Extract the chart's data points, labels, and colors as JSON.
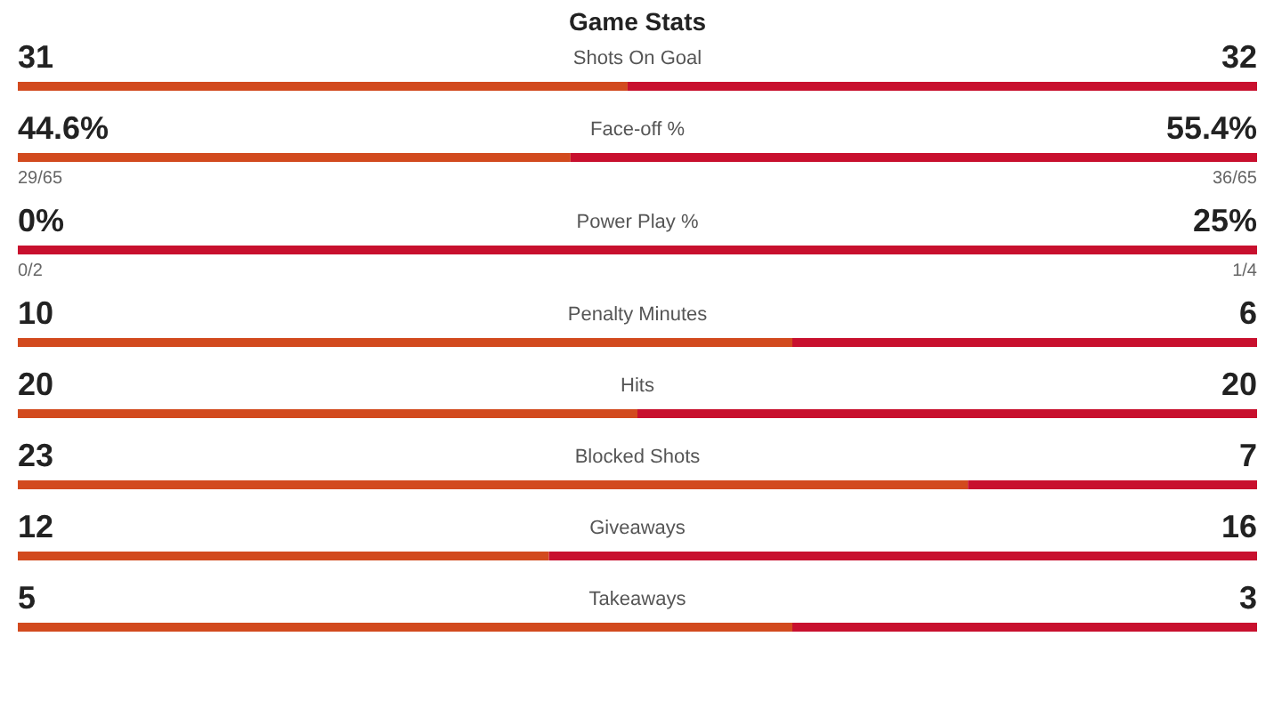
{
  "chart_data": [
    {
      "type": "bar",
      "orientation": "horizontal",
      "stacked": true,
      "title": "Game Stats",
      "categories": [
        "Shots On Goal"
      ],
      "series": [
        {
          "color": "#d24a1e",
          "values": [
            31
          ],
          "value_labels": [
            "31"
          ]
        },
        {
          "color": "#c8102e",
          "values": [
            32
          ],
          "value_labels": [
            "32"
          ]
        }
      ]
    },
    {
      "type": "bar",
      "orientation": "horizontal",
      "stacked": true,
      "categories": [
        "Face-off %"
      ],
      "annotations": [
        "29/65",
        "36/65"
      ],
      "series": [
        {
          "color": "#d24a1e",
          "values": [
            44.6
          ],
          "value_labels": [
            "44.6%"
          ]
        },
        {
          "color": "#c8102e",
          "values": [
            55.4
          ],
          "value_labels": [
            "55.4%"
          ]
        }
      ]
    },
    {
      "type": "bar",
      "orientation": "horizontal",
      "stacked": true,
      "categories": [
        "Power Play %"
      ],
      "annotations": [
        "0/2",
        "1/4"
      ],
      "series": [
        {
          "color": "#d24a1e",
          "values": [
            0
          ],
          "value_labels": [
            "0%"
          ]
        },
        {
          "color": "#c8102e",
          "values": [
            25
          ],
          "value_labels": [
            "25%"
          ]
        }
      ]
    },
    {
      "type": "bar",
      "orientation": "horizontal",
      "stacked": true,
      "categories": [
        "Penalty Minutes"
      ],
      "series": [
        {
          "color": "#d24a1e",
          "values": [
            10
          ],
          "value_labels": [
            "10"
          ]
        },
        {
          "color": "#c8102e",
          "values": [
            6
          ],
          "value_labels": [
            "6"
          ]
        }
      ]
    },
    {
      "type": "bar",
      "orientation": "horizontal",
      "stacked": true,
      "categories": [
        "Hits"
      ],
      "series": [
        {
          "color": "#d24a1e",
          "values": [
            20
          ],
          "value_labels": [
            "20"
          ]
        },
        {
          "color": "#c8102e",
          "values": [
            20
          ],
          "value_labels": [
            "20"
          ]
        }
      ]
    },
    {
      "type": "bar",
      "orientation": "horizontal",
      "stacked": true,
      "categories": [
        "Blocked Shots"
      ],
      "series": [
        {
          "color": "#d24a1e",
          "values": [
            23
          ],
          "value_labels": [
            "23"
          ]
        },
        {
          "color": "#c8102e",
          "values": [
            7
          ],
          "value_labels": [
            "7"
          ]
        }
      ]
    },
    {
      "type": "bar",
      "orientation": "horizontal",
      "stacked": true,
      "categories": [
        "Giveaways"
      ],
      "series": [
        {
          "color": "#d24a1e",
          "values": [
            12
          ],
          "value_labels": [
            "12"
          ]
        },
        {
          "color": "#c8102e",
          "values": [
            16
          ],
          "value_labels": [
            "16"
          ]
        }
      ]
    },
    {
      "type": "bar",
      "orientation": "horizontal",
      "stacked": true,
      "categories": [
        "Takeaways"
      ],
      "series": [
        {
          "color": "#d24a1e",
          "values": [
            5
          ],
          "value_labels": [
            "5"
          ]
        },
        {
          "color": "#c8102e",
          "values": [
            3
          ],
          "value_labels": [
            "3"
          ]
        }
      ]
    }
  ]
}
